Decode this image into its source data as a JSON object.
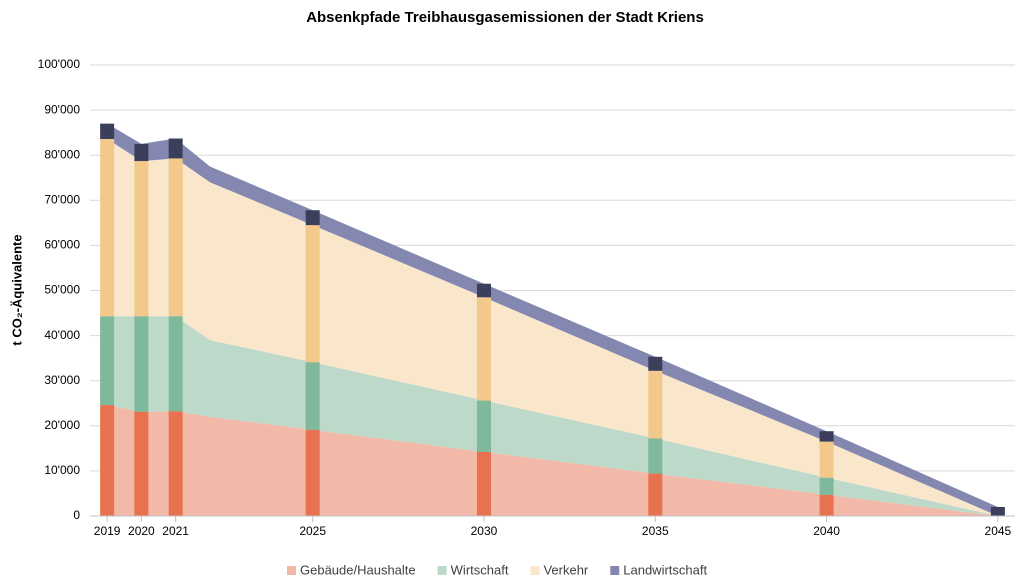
{
  "chart_data": {
    "type": "stacked_area",
    "title": "Absenkpfade Treibhausgasemissionen der Stadt Kriens",
    "y_label": "t CO₂-Äquivalente",
    "x": [
      2019,
      2020,
      2021,
      2022,
      2025,
      2030,
      2035,
      2040,
      2045
    ],
    "series": [
      {
        "name": "Gebäude/Haushalte",
        "color": "#f3b9a8",
        "bar_color": "#e8714f",
        "values": [
          24.6,
          23.1,
          23.2,
          22,
          19.1,
          14.2,
          9.4,
          4.7,
          0
        ]
      },
      {
        "name": "Wirtschaft",
        "color": "#bcd9c9",
        "bar_color": "#7fb89a",
        "values": [
          19.7,
          21.2,
          21.1,
          17,
          15,
          11.4,
          7.8,
          3.8,
          0
        ]
      },
      {
        "name": "Verkehr",
        "color": "#f9e6cb",
        "bar_color": "#f2c98a",
        "values": [
          39.3,
          34.4,
          35,
          35,
          30.4,
          22.9,
          15,
          8,
          0
        ]
      },
      {
        "name": "Landwirtschaft",
        "color": "#8488b0",
        "bar_color": "#3b3f5c",
        "values": [
          3.4,
          3.8,
          4.4,
          3.5,
          3.3,
          3,
          3.1,
          2.3,
          2
        ]
      }
    ],
    "xlim": [
      2018.5,
      2045.5
    ],
    "xticks": [
      2019,
      2020,
      2021,
      2025,
      2030,
      2035,
      2040,
      2045
    ],
    "ylim": [
      0,
      100
    ],
    "yticks": [
      0,
      {
        "value": 10,
        "label": "10'000"
      },
      {
        "value": 20,
        "label": "20'000"
      },
      {
        "value": 30,
        "label": "30'000"
      },
      {
        "value": 40,
        "label": "40'000"
      },
      {
        "value": 50,
        "label": "50'000"
      },
      {
        "value": 60,
        "label": "60'000"
      },
      {
        "value": 70,
        "label": "70'000"
      },
      {
        "value": 80,
        "label": "80'000"
      },
      {
        "value": 90,
        "label": "90'000"
      },
      {
        "value": 100,
        "label": "100'000"
      }
    ],
    "grid": true,
    "legend": "bottom"
  }
}
